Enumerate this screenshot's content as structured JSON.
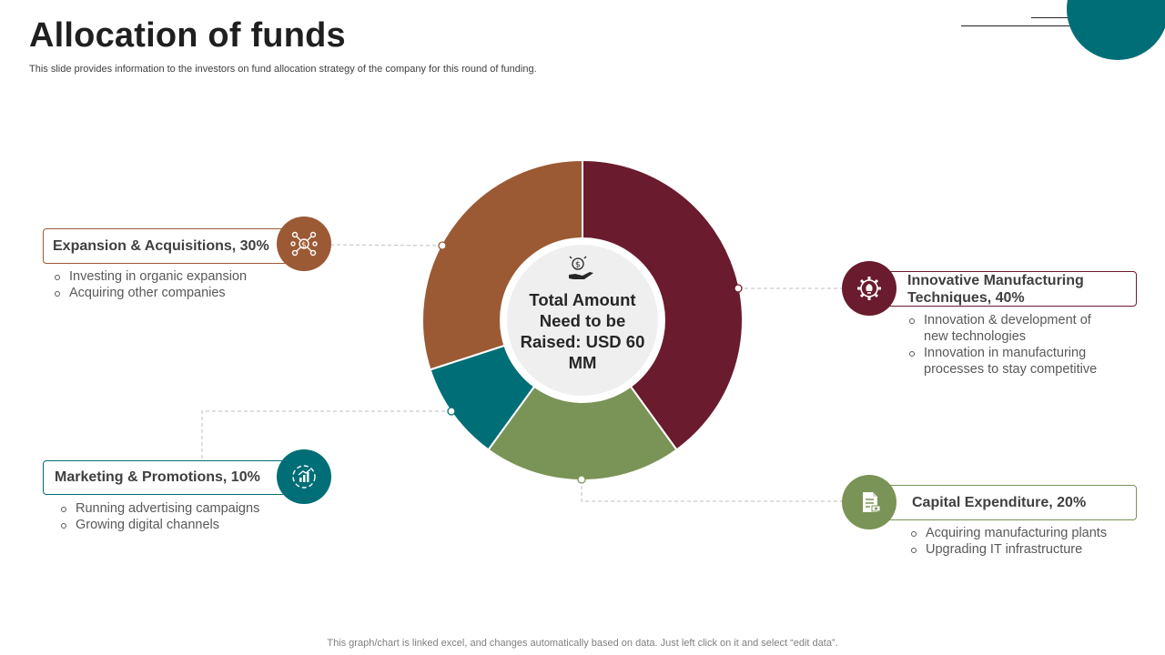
{
  "title": "Allocation of funds",
  "subtitle": "This slide provides information to the investors on fund allocation strategy of the company for this round of funding.",
  "footer": "This graph/chart is linked excel, and changes automatically based on data. Just left click on it and select “edit data”.",
  "center_label": "Total Amount Need to be Raised: USD 60 MM",
  "colors": {
    "brown": "#9B5A34",
    "maroon": "#6A1B2E",
    "green": "#7A9356",
    "teal": "#006E77",
    "center_fill": "#EFEFEF"
  },
  "chart_data": {
    "type": "pie",
    "variant": "donut",
    "center_label": "Total Amount Need to be Raised: USD 60 MM",
    "slices": [
      {
        "label": "Innovative Manufacturing Techniques",
        "value": 40,
        "color": "#6A1B2E"
      },
      {
        "label": "Capital Expenditure",
        "value": 20,
        "color": "#7A9356"
      },
      {
        "label": "Marketing & Promotions",
        "value": 10,
        "color": "#006E77"
      },
      {
        "label": "Expansion & Acquisitions",
        "value": 30,
        "color": "#9B5A34"
      }
    ]
  },
  "items": {
    "innovative": {
      "title": "Innovative Manufacturing Techniques, 40%",
      "icon": "innovation-gear-bulb-icon",
      "bullets": [
        "Innovation & development of new technologies",
        "Innovation in manufacturing processes to stay competitive"
      ]
    },
    "capex": {
      "title": "Capital Expenditure, 20%",
      "icon": "document-money-icon",
      "bullets": [
        "Acquiring manufacturing plants",
        "Upgrading IT infrastructure"
      ]
    },
    "marketing": {
      "title": "Marketing & Promotions, 10%",
      "icon": "digital-marketing-icon",
      "bullets": [
        "Running advertising campaigns",
        "Growing digital channels"
      ]
    },
    "expansion": {
      "title": "Expansion & Acquisitions, 30%",
      "icon": "dollar-network-icon",
      "bullets": [
        "Investing in organic expansion",
        "Acquiring other companies"
      ]
    }
  }
}
